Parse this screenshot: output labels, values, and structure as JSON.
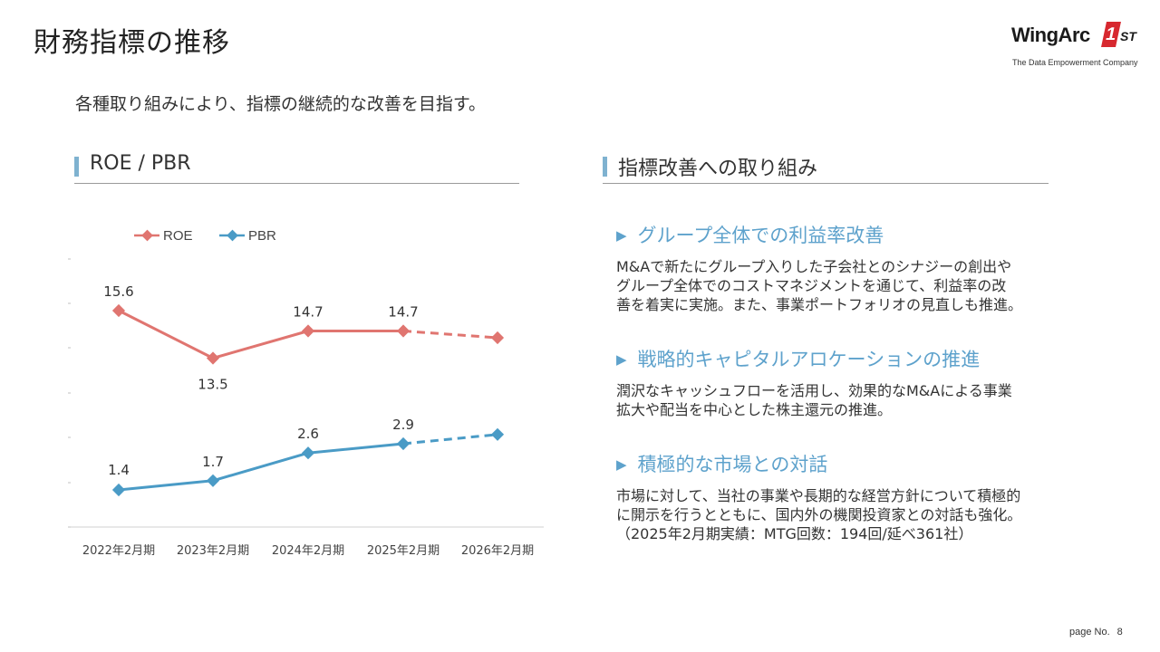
{
  "slide": {
    "title": "財務指標の推移",
    "subtitle": "各種取り組みにより、指標の継続的な改善を目指す。",
    "page_label": "page No.",
    "page_number": "8"
  },
  "logo": {
    "main": "WingArc",
    "badge": "1",
    "suffix": "ST",
    "tagline": "The Data Empowerment Company"
  },
  "left_section": {
    "heading": "ROE / PBR"
  },
  "right_section": {
    "heading": "指標改善への取り組み",
    "items": [
      {
        "title": "グループ全体での利益率改善",
        "body": "M&Aで新たにグループ入りした子会社とのシナジーの創出や\nグループ全体でのコストマネジメントを通じて、利益率の改\n善を着実に実施。また、事業ポートフォリオの見直しも推進。"
      },
      {
        "title": "戦略的キャピタルアロケーションの推進",
        "body": "潤沢なキャッシュフローを活用し、効果的なM&Aによる事業\n拡大や配当を中心とした株主還元の推進。"
      },
      {
        "title": "積極的な市場との対話",
        "body": "市場に対して、当社の事業や長期的な経営方針について積極的\nに開示を行うとともに、国内外の機関投資家との対話も強化。\n（2025年2月期実績：MTG回数：194回/延べ361社）"
      }
    ]
  },
  "colors": {
    "roe": "#e07570",
    "pbr": "#4a9bc6",
    "accent": "#7fb2d0"
  },
  "chart_data": {
    "type": "line",
    "categories": [
      "2022年2月期",
      "2023年2月期",
      "2024年2月期",
      "2025年2月期",
      "2026年2月期"
    ],
    "series": [
      {
        "name": "ROE",
        "values": [
          15.6,
          13.5,
          14.7,
          14.7,
          null
        ],
        "forecast_level": 14.4,
        "labels": [
          "15.6",
          "13.5",
          "14.7",
          "14.7",
          ""
        ]
      },
      {
        "name": "PBR",
        "values": [
          1.4,
          1.7,
          2.6,
          2.9,
          null
        ],
        "forecast_level": 3.2,
        "labels": [
          "1.4",
          "1.7",
          "2.6",
          "2.9",
          ""
        ]
      }
    ],
    "title": "",
    "xlabel": "",
    "ylabel": "",
    "note": "Final segment (2025→2026) drawn dashed as forecast; 2026 value not labeled",
    "legend": "top-left"
  }
}
